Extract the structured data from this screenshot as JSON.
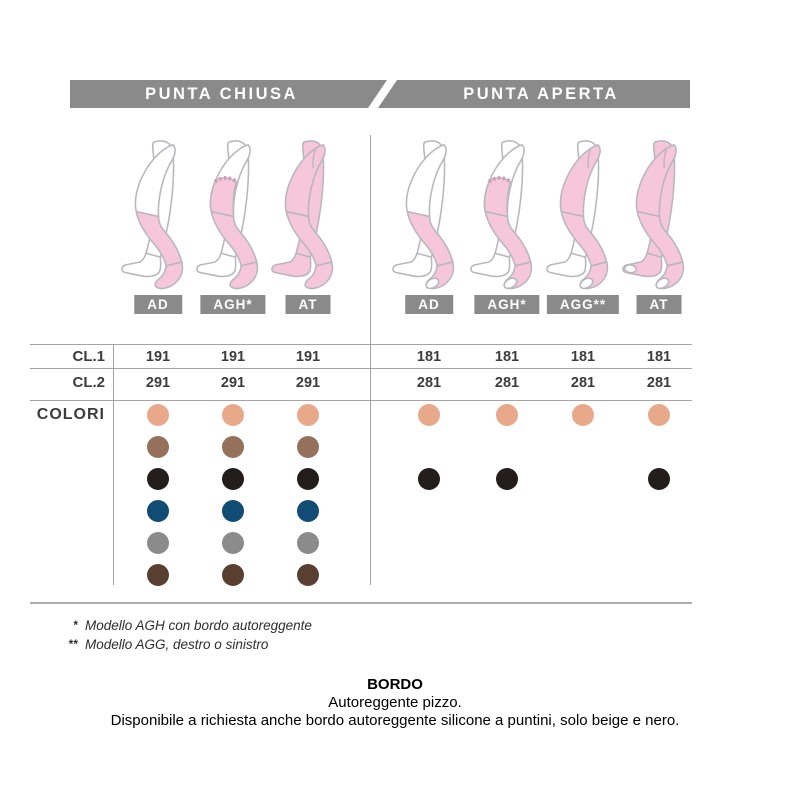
{
  "header": {
    "left": "PUNTA CHIUSA",
    "right": "PUNTA APERTA"
  },
  "groups": {
    "left": {
      "toe": "closed",
      "models": [
        {
          "label": "AD",
          "style": "ad"
        },
        {
          "label": "AGH*",
          "style": "agh"
        },
        {
          "label": "AT",
          "style": "at"
        }
      ]
    },
    "right": {
      "toe": "open",
      "models": [
        {
          "label": "AD",
          "style": "ad"
        },
        {
          "label": "AGH*",
          "style": "agh"
        },
        {
          "label": "AGG**",
          "style": "agg"
        },
        {
          "label": "AT",
          "style": "at"
        }
      ]
    }
  },
  "table": {
    "size_rows": [
      {
        "label": "CL.1",
        "left": [
          "191",
          "191",
          "191"
        ],
        "right": [
          "181",
          "181",
          "181",
          "181"
        ]
      },
      {
        "label": "CL.2",
        "left": [
          "291",
          "291",
          "291"
        ],
        "right": [
          "281",
          "281",
          "281",
          "281"
        ]
      }
    ],
    "colors_label": "COLORI",
    "swatches": [
      {
        "name": "beige",
        "hex": "#e8a98a",
        "left": [
          true,
          true,
          true
        ],
        "right": [
          true,
          true,
          true,
          true
        ]
      },
      {
        "name": "brown",
        "hex": "#95705a",
        "left": [
          true,
          true,
          true
        ],
        "right": [
          false,
          false,
          false,
          false
        ]
      },
      {
        "name": "black",
        "hex": "#231e1c",
        "left": [
          true,
          true,
          true
        ],
        "right": [
          true,
          true,
          false,
          true
        ]
      },
      {
        "name": "blue",
        "hex": "#104c73",
        "left": [
          true,
          true,
          true
        ],
        "right": [
          false,
          false,
          false,
          false
        ]
      },
      {
        "name": "grey",
        "hex": "#8b8b8b",
        "left": [
          true,
          true,
          true
        ],
        "right": [
          false,
          false,
          false,
          false
        ]
      },
      {
        "name": "dark-brown",
        "hex": "#583f30",
        "left": [
          true,
          true,
          true
        ],
        "right": [
          false,
          false,
          false,
          false
        ]
      }
    ]
  },
  "footnotes": [
    {
      "marker": "*",
      "text": "Modello AGH con bordo autoreggente"
    },
    {
      "marker": "**",
      "text": "Modello AGG, destro o sinistro"
    }
  ],
  "bordo": {
    "title": "BORDO",
    "line1": "Autoreggente pizzo.",
    "line2": "Disponibile a richiesta anche bordo autoreggente silicone a puntini, solo beige e nero."
  },
  "colors": {
    "bar_grey": "#8a8a8a",
    "line_grey": "#a3a3a3",
    "leg_pink": "#f6c6da",
    "leg_outline": "#b7b7bd",
    "lace_band": "#d893b5"
  }
}
